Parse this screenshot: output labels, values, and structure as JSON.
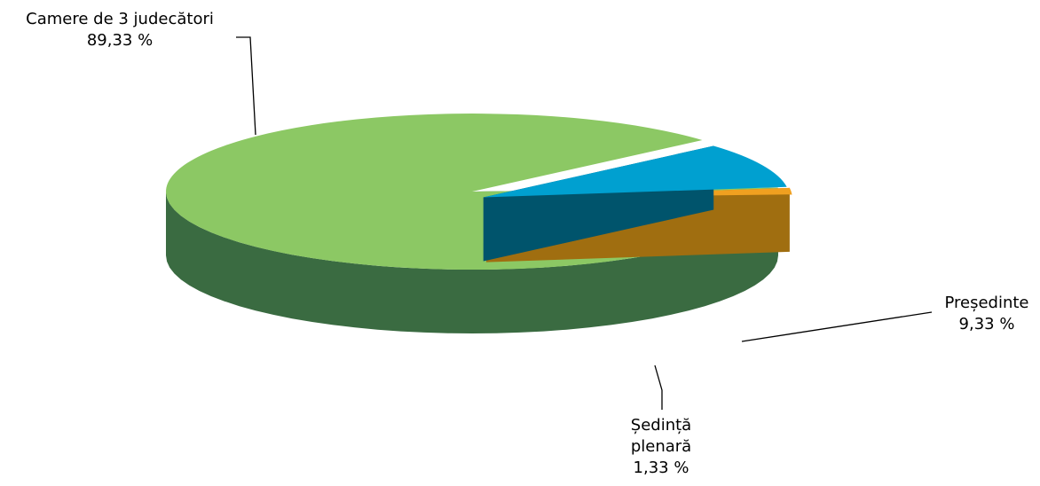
{
  "chart_data": {
    "type": "pie",
    "style": "3d-exploded",
    "title": "",
    "slices": [
      {
        "label": "Camere de 3 judecători",
        "value": 89.33,
        "value_label": "89,33 %",
        "color": "#8CC864",
        "side_color": "#3A6B41"
      },
      {
        "label": "Președinte",
        "value": 9.33,
        "value_label": "9,33 %",
        "color": "#00A0D0",
        "side_color": "#00546C"
      },
      {
        "label": [
          "Ședință",
          "plenară"
        ],
        "value": 1.33,
        "value_label": "1,33 %",
        "color": "#F0A020",
        "side_color": "#A06E10"
      }
    ]
  }
}
